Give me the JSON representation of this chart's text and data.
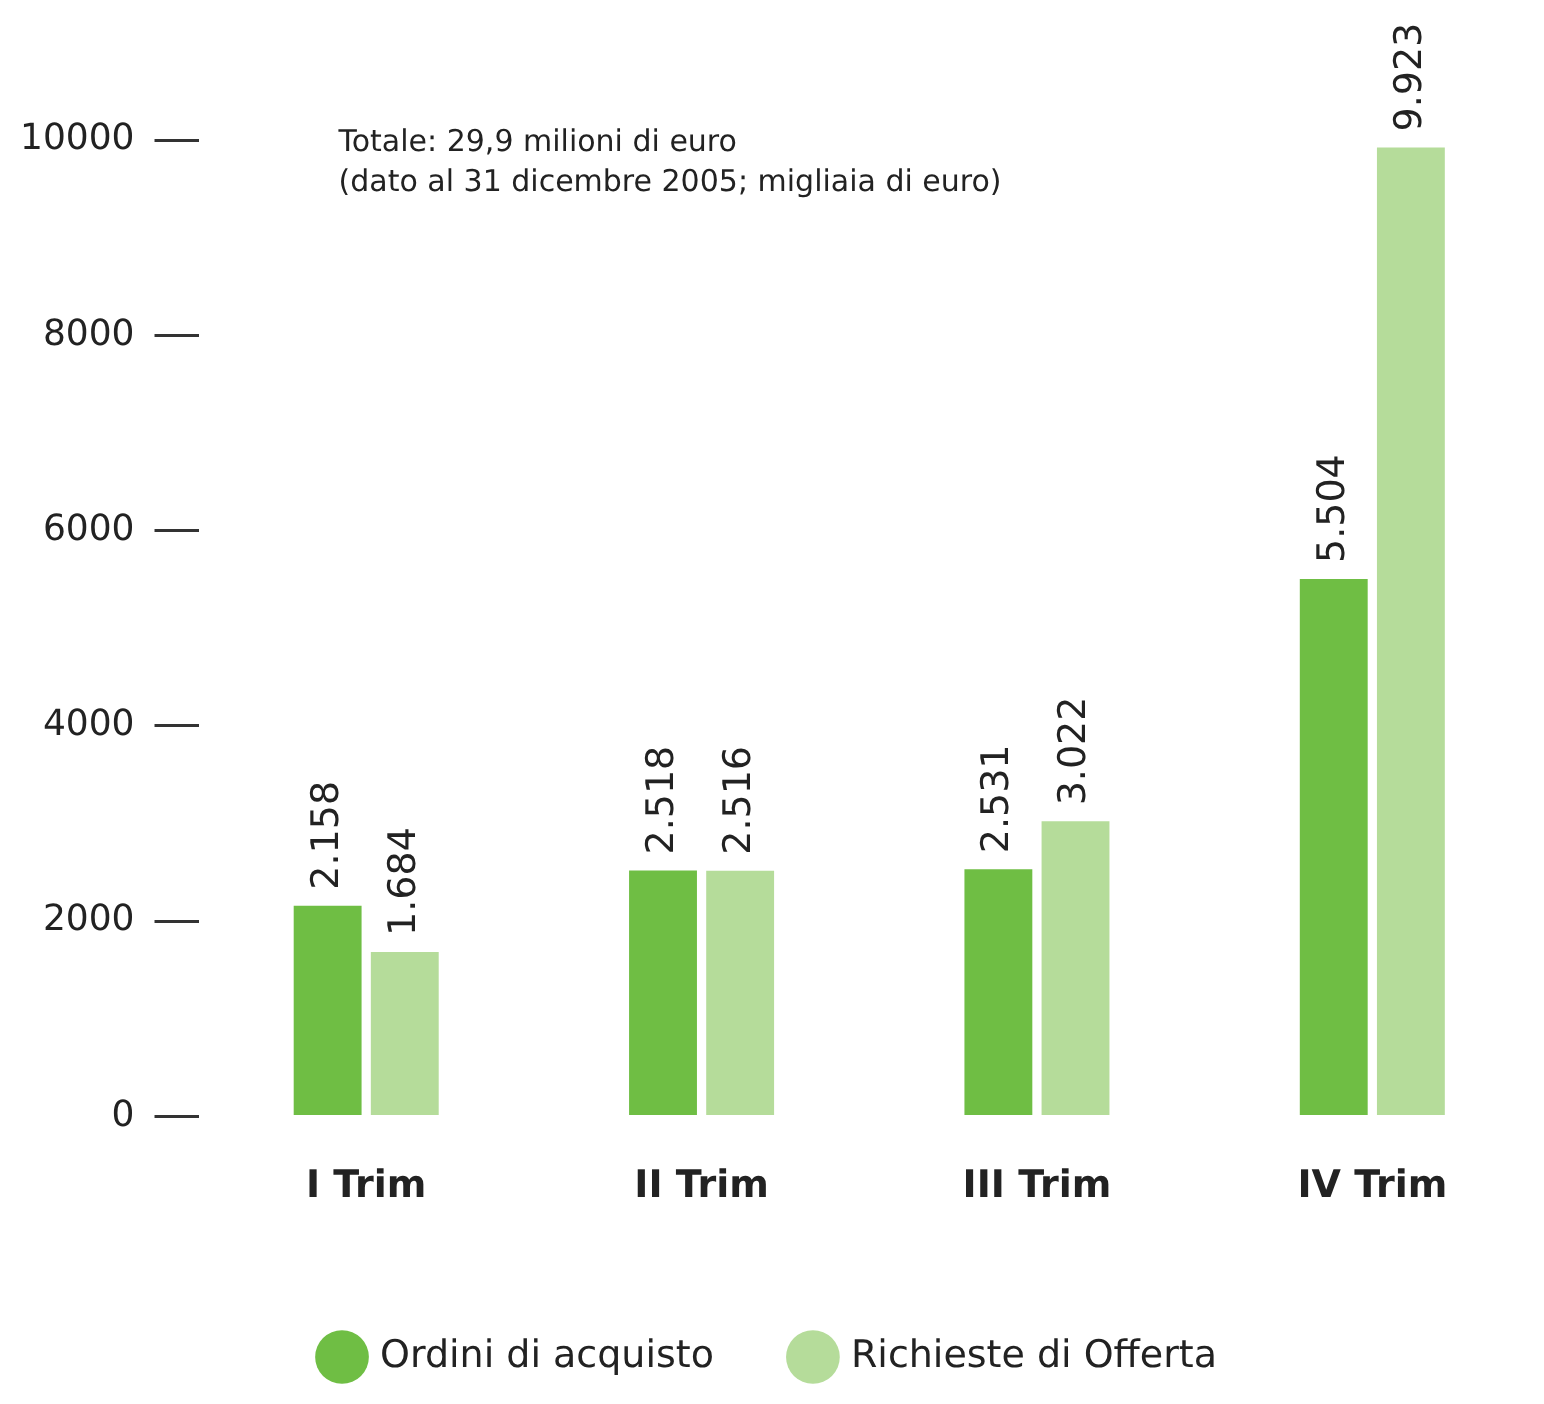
{
  "chart_data": {
    "type": "bar",
    "categories": [
      "I Trim",
      "II Trim",
      "III Trim",
      "IV Trim"
    ],
    "series": [
      {
        "name": "Ordini di acquisto",
        "color": "#6fbe44",
        "values": [
          2158,
          2518,
          2531,
          5504
        ],
        "value_labels": [
          "2.158",
          "2.518",
          "2.531",
          "5.504"
        ]
      },
      {
        "name": "Richieste di Offerta",
        "color": "#b5dc9a",
        "values": [
          1684,
          2516,
          3022,
          9923
        ],
        "value_labels": [
          "1.684",
          "2.516",
          "3.022",
          "9.923"
        ]
      }
    ],
    "ylim": [
      0,
      10000
    ],
    "yticks": [
      0,
      2000,
      4000,
      6000,
      8000,
      10000
    ],
    "grid": false,
    "legend": "bottom",
    "annotations": [
      "Totale: 29,9 milioni di euro",
      "(dato al 31 dicembre 2005; migliaia di euro)"
    ]
  }
}
